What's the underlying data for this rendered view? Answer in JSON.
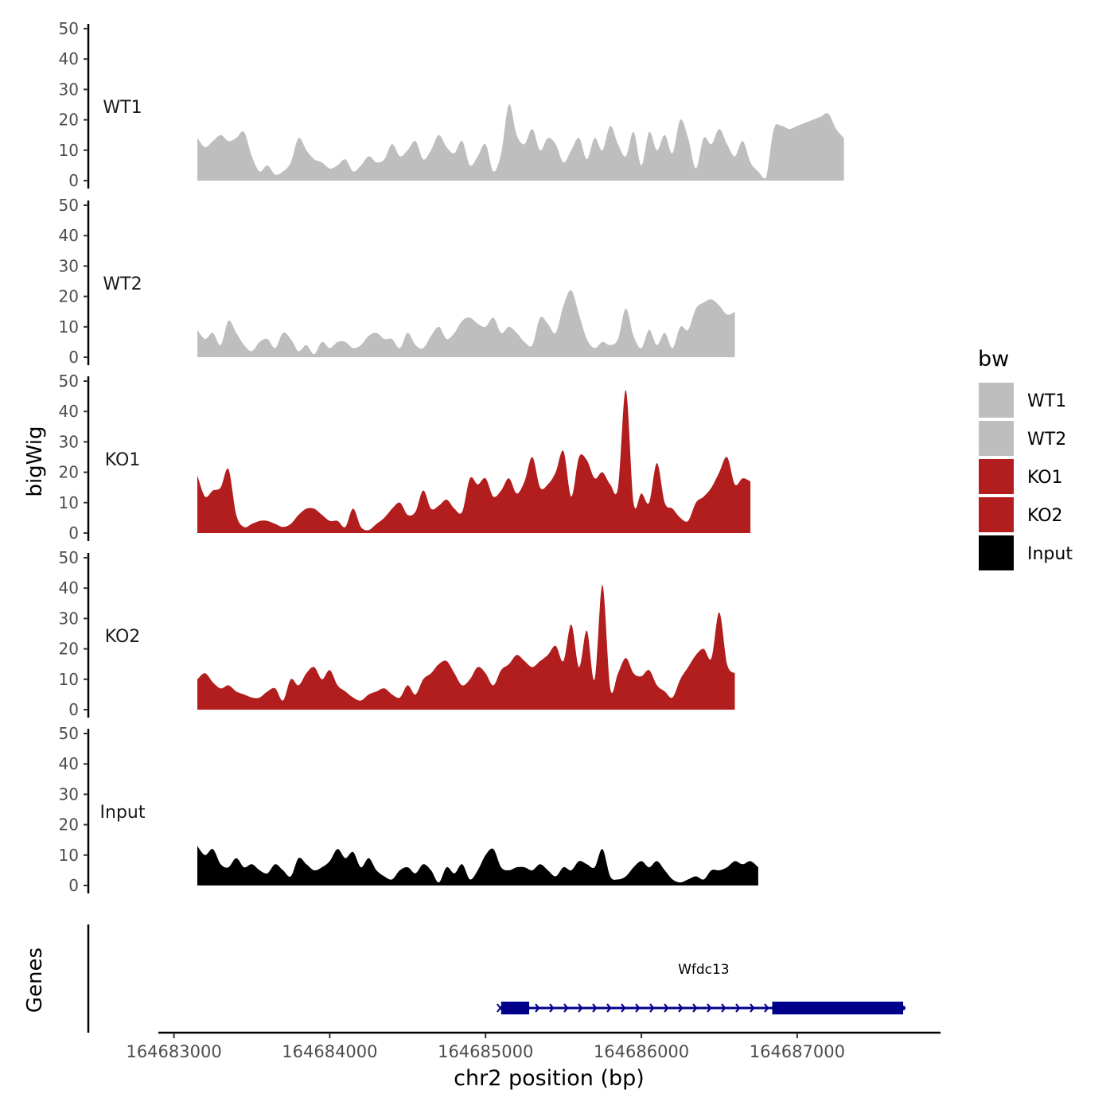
{
  "chart_data": {
    "type": "area",
    "ylabel": "bigWig",
    "xlabel": "chr2 position (bp)",
    "ylim": [
      0,
      50
    ],
    "yticks": [
      0,
      10,
      20,
      30,
      40,
      50
    ],
    "xlim": [
      164682900,
      164687920
    ],
    "xticks": [
      164683000,
      164684000,
      164685000,
      164686000,
      164687000
    ],
    "xtick_labels": [
      "164683000",
      "164684000",
      "164685000",
      "164686000",
      "164687000"
    ],
    "legend": {
      "title": "bw",
      "position": "right",
      "entries": [
        {
          "label": "WT1",
          "color": "#bebebe"
        },
        {
          "label": "WT2",
          "color": "#bebebe"
        },
        {
          "label": "KO1",
          "color": "#b21e1e"
        },
        {
          "label": "KO2",
          "color": "#b21e1e"
        },
        {
          "label": "Input",
          "color": "#000000"
        }
      ]
    },
    "tracks": [
      {
        "name": "WT1",
        "color": "#bebebe",
        "x_start": 164683150,
        "x_step": 50,
        "values": [
          14,
          11,
          13,
          15,
          13,
          14,
          16,
          8,
          3,
          5,
          2,
          3,
          6,
          14,
          10,
          7,
          6,
          4,
          5,
          7,
          3,
          5,
          8,
          6,
          7,
          12,
          8,
          10,
          13,
          7,
          10,
          15,
          11,
          9,
          13,
          5,
          8,
          12,
          3,
          9,
          25,
          15,
          12,
          17,
          10,
          14,
          12,
          6,
          10,
          14,
          7,
          14,
          10,
          18,
          12,
          8,
          16,
          5,
          16,
          10,
          15,
          9,
          20,
          14,
          4,
          14,
          12,
          17,
          12,
          8,
          13,
          6,
          3,
          1,
          17,
          18,
          17,
          18,
          19,
          20,
          21,
          22,
          17,
          14
        ]
      },
      {
        "name": "WT2",
        "color": "#bebebe",
        "x_start": 164683150,
        "x_step": 50,
        "values": [
          9,
          6,
          8,
          4,
          12,
          8,
          4,
          2,
          5,
          6,
          3,
          8,
          6,
          2,
          4,
          1,
          5,
          3,
          5,
          5,
          3,
          4,
          7,
          8,
          6,
          6,
          3,
          8,
          4,
          3,
          7,
          10,
          6,
          8,
          12,
          13,
          11,
          10,
          13,
          8,
          10,
          8,
          5,
          4,
          13,
          11,
          8,
          17,
          22,
          14,
          6,
          3,
          5,
          4,
          6,
          16,
          7,
          3,
          9,
          4,
          8,
          3,
          10,
          9,
          16,
          18,
          19,
          17,
          14,
          15
        ]
      },
      {
        "name": "KO1",
        "color": "#b21e1e",
        "x_start": 164683150,
        "x_step": 50,
        "values": [
          19,
          12,
          14,
          15,
          21,
          6,
          2,
          3,
          4,
          4,
          3,
          2,
          3,
          6,
          8,
          8,
          6,
          4,
          4,
          2,
          8,
          2,
          1,
          3,
          5,
          8,
          10,
          6,
          7,
          14,
          8,
          9,
          11,
          8,
          7,
          18,
          16,
          18,
          12,
          14,
          18,
          13,
          17,
          25,
          15,
          16,
          20,
          27,
          12,
          25,
          24,
          18,
          20,
          16,
          15,
          47,
          10,
          13,
          10,
          23,
          10,
          8,
          5,
          4,
          10,
          12,
          15,
          20,
          25,
          16,
          18,
          17
        ]
      },
      {
        "name": "KO2",
        "color": "#b21e1e",
        "x_start": 164683150,
        "x_step": 50,
        "values": [
          10,
          12,
          9,
          7,
          8,
          6,
          5,
          4,
          4,
          6,
          7,
          3,
          10,
          8,
          12,
          14,
          10,
          13,
          8,
          6,
          4,
          3,
          5,
          6,
          7,
          5,
          4,
          8,
          5,
          10,
          12,
          15,
          16,
          12,
          8,
          10,
          14,
          12,
          8,
          13,
          15,
          18,
          16,
          14,
          16,
          18,
          21,
          16,
          28,
          14,
          26,
          10,
          41,
          7,
          12,
          17,
          12,
          11,
          13,
          8,
          6,
          4,
          10,
          14,
          18,
          20,
          17,
          32,
          15,
          12
        ]
      },
      {
        "name": "Input",
        "color": "#000000",
        "x_start": 164683150,
        "x_step": 50,
        "values": [
          13,
          10,
          12,
          7,
          6,
          9,
          6,
          7,
          5,
          4,
          7,
          5,
          3,
          9,
          7,
          5,
          6,
          8,
          12,
          9,
          11,
          6,
          9,
          5,
          3,
          2,
          5,
          6,
          4,
          7,
          5,
          1,
          6,
          4,
          7,
          2,
          5,
          10,
          12,
          6,
          5,
          6,
          6,
          5,
          7,
          5,
          3,
          6,
          5,
          8,
          7,
          6,
          12,
          3,
          2,
          3,
          6,
          8,
          6,
          8,
          5,
          2,
          1,
          2,
          3,
          2,
          5,
          5,
          6,
          8,
          7,
          8,
          6
        ]
      }
    ]
  },
  "genes_panel": {
    "label": "Genes",
    "gene_name": "Wfdc13",
    "color": "#00008b",
    "strand": "+",
    "start": 164685100,
    "end": 164687680,
    "exons": [
      [
        164685100,
        164685280
      ],
      [
        164686840,
        164687680
      ]
    ]
  }
}
